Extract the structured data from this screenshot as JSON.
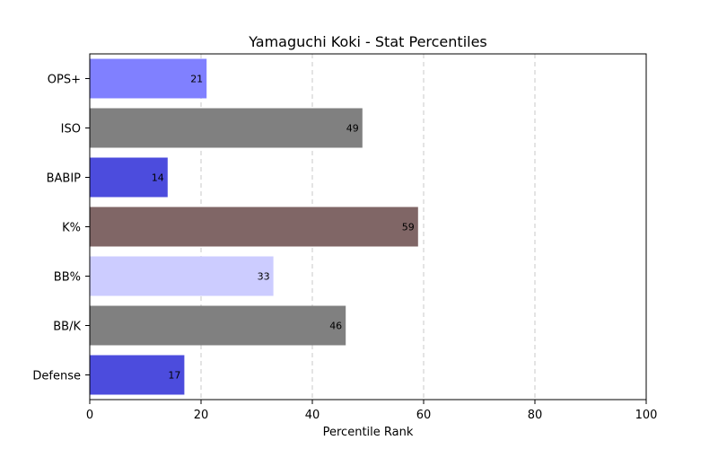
{
  "chart_data": {
    "type": "bar",
    "orientation": "horizontal",
    "title": "Yamaguchi Koki - Stat Percentiles",
    "xlabel": "Percentile Rank",
    "ylabel": "",
    "xlim": [
      0,
      100
    ],
    "xticks": [
      0,
      20,
      40,
      60,
      80,
      100
    ],
    "grid": "x-axis dashed",
    "categories": [
      "OPS+",
      "ISO",
      "BABIP",
      "K%",
      "BB%",
      "BB/K",
      "Defense"
    ],
    "values": [
      21,
      49,
      14,
      59,
      33,
      46,
      17
    ],
    "colors": [
      "#8080ff",
      "#808080",
      "#4c4cdd",
      "#806666",
      "#ccccff",
      "#808080",
      "#4c4cdd"
    ]
  }
}
